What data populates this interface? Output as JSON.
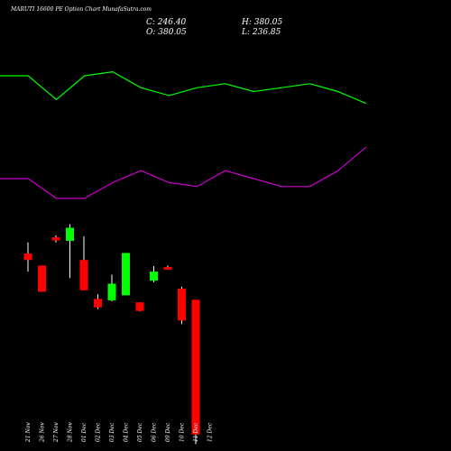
{
  "header": {
    "title": "MARUTI 16600 PE Option Chart MunafaSutra.com",
    "close": "C: 246.40",
    "high": "H: 380.05",
    "open": "O: 380.05",
    "low": "L: 236.85"
  },
  "colors": {
    "background": "#000000",
    "upper_band": "#00ff00",
    "lower_band": "#cc00cc",
    "bullish": "#00ff00",
    "bearish": "#ff0000",
    "wick": "#ffffff",
    "text": "#ffffff"
  },
  "chart_data": {
    "type": "candlestick",
    "title": "MARUTI 16600 PE Option Chart MunafaSutra.com",
    "categories": [
      "21 Nov",
      "26 Nov",
      "27 Nov",
      "28 Nov",
      "01 Dec",
      "02 Dec",
      "03 Dec",
      "04 Dec",
      "05 Dec",
      "06 Dec",
      "09 Dec",
      "10 Dec",
      "11 Dec",
      "12 Dec"
    ],
    "ohlc": [
      {
        "open": 426.0,
        "high": 437.0,
        "low": 408.0,
        "close": 419.5
      },
      {
        "open": 414.0,
        "high": 414.0,
        "low": 388.0,
        "close": 388.0
      },
      {
        "open": 442.0,
        "high": 444.0,
        "low": 437.0,
        "close": 439.0
      },
      {
        "open": 438.5,
        "high": 455.0,
        "low": 401.5,
        "close": 451.5
      },
      {
        "open": 419.5,
        "high": 443.0,
        "low": 389.5,
        "close": 389.5
      },
      {
        "open": 381.0,
        "high": 385.5,
        "low": 371.0,
        "close": 372.5
      },
      {
        "open": 379.5,
        "high": 405.0,
        "low": 378.5,
        "close": 396.0
      },
      {
        "open": 384.5,
        "high": 426.5,
        "low": 384.5,
        "close": 426.5
      },
      {
        "open": 377.5,
        "high": 377.5,
        "low": 368.5,
        "close": 369.0
      },
      {
        "open": 399.0,
        "high": 413.5,
        "low": 397.5,
        "close": 408.0
      },
      {
        "open": 412.5,
        "high": 414.0,
        "low": 410.0,
        "close": 410.0
      },
      {
        "open": 391.0,
        "high": 393.0,
        "low": 356.0,
        "close": 359.5
      },
      {
        "open": 380.05,
        "high": 380.05,
        "low": 236.85,
        "close": 246.4
      }
    ],
    "ohlc_x_index": [
      0,
      1,
      2,
      3,
      4,
      5,
      6,
      7,
      8,
      9,
      10,
      11,
      12
    ],
    "upper_band": [
      {
        "x": "21 Nov",
        "y": 880
      },
      {
        "x": "26 Nov",
        "y": 880
      },
      {
        "x": "27 Nov",
        "y": 820
      },
      {
        "x": "28 Nov",
        "y": 880
      },
      {
        "x": "01 Dec",
        "y": 890
      },
      {
        "x": "02 Dec",
        "y": 850
      },
      {
        "x": "03 Dec",
        "y": 830
      },
      {
        "x": "04 Dec",
        "y": 850
      },
      {
        "x": "05 Dec",
        "y": 860
      },
      {
        "x": "06 Dec",
        "y": 840
      },
      {
        "x": "09 Dec",
        "y": 850
      },
      {
        "x": "10 Dec",
        "y": 860
      },
      {
        "x": "11 Dec",
        "y": 840
      },
      {
        "x": "12 Dec",
        "y": 810
      }
    ],
    "lower_band": [
      {
        "x": "21 Nov",
        "y": 620
      },
      {
        "x": "26 Nov",
        "y": 620
      },
      {
        "x": "27 Nov",
        "y": 570
      },
      {
        "x": "28 Nov",
        "y": 570
      },
      {
        "x": "01 Dec",
        "y": 610
      },
      {
        "x": "02 Dec",
        "y": 640
      },
      {
        "x": "03 Dec",
        "y": 610
      },
      {
        "x": "04 Dec",
        "y": 600
      },
      {
        "x": "05 Dec",
        "y": 640
      },
      {
        "x": "06 Dec",
        "y": 620
      },
      {
        "x": "09 Dec",
        "y": 600
      },
      {
        "x": "10 Dec",
        "y": 600
      },
      {
        "x": "11 Dec",
        "y": 640
      },
      {
        "x": "12 Dec",
        "y": 700
      }
    ],
    "upper_band_x": [
      0,
      1,
      2,
      3,
      4,
      5,
      6,
      7,
      8,
      9,
      10,
      11,
      12,
      13
    ],
    "lower_band_x": [
      0,
      1,
      2,
      3,
      4,
      5,
      6,
      7,
      8,
      9,
      10,
      11,
      12,
      13
    ],
    "grid": false,
    "legend": false
  }
}
